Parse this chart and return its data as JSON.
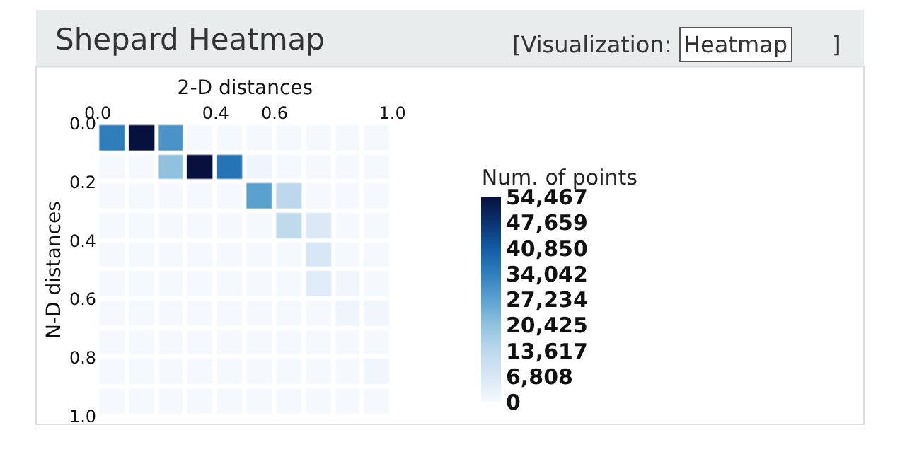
{
  "chart_data": {
    "type": "heatmap",
    "title": "Shepard Heatmap",
    "xlabel": "2-D distances",
    "ylabel": "N-D distances",
    "clabel": "Num. of points",
    "annotations": [
      "[Visualization:",
      "Heatmap",
      "]"
    ],
    "xlim": [
      0,
      1
    ],
    "ylim": [
      1,
      0
    ],
    "xticks": [
      {
        "value": 0,
        "label": "0.0"
      },
      0.4,
      0.6,
      {
        "value": 1,
        "label": "1.0"
      }
    ],
    "yticks": [
      {
        "value": 0,
        "label": "0.0"
      },
      0.2,
      0.4,
      0.6,
      0.8,
      {
        "value": 1,
        "label": "1.0"
      }
    ],
    "clim": [
      0,
      54467
    ],
    "cticks": [
      0,
      {
        "value": 6808,
        "label": "6,808"
      },
      {
        "value": 13617,
        "label": "13,617"
      },
      {
        "value": 20425,
        "label": "20,425"
      },
      {
        "value": 27234,
        "label": "27,234"
      },
      {
        "value": 34042,
        "label": "34,042"
      },
      {
        "value": 40850,
        "label": "40,850"
      },
      {
        "value": 47659,
        "label": "47,659"
      },
      {
        "value": 54467,
        "label": "54,467"
      }
    ],
    "colors": [
      "#f5f9fe",
      "#d8e7f5",
      "#bdd8ec",
      "#90c2df",
      "#5ba1d0",
      "#2f7ebc",
      "#115ca5",
      "#0a3270",
      "#08103d"
    ],
    "cells": [
      [
        34042,
        54467,
        30000,
        0,
        0,
        0,
        0,
        0,
        0,
        0
      ],
      [
        0,
        0,
        20425,
        54467,
        36000,
        1500,
        0,
        0,
        0,
        0
      ],
      [
        0,
        0,
        0,
        0,
        0,
        27234,
        13617,
        0,
        0,
        0
      ],
      [
        0,
        0,
        0,
        0,
        0,
        0,
        13000,
        6000,
        0,
        0
      ],
      [
        0,
        0,
        0,
        0,
        0,
        0,
        0,
        7000,
        0,
        0
      ],
      [
        0,
        0,
        0,
        0,
        0,
        0,
        0,
        5000,
        1000,
        0
      ],
      [
        0,
        0,
        0,
        0,
        0,
        0,
        0,
        0,
        1500,
        1000
      ],
      [
        0,
        0,
        0,
        0,
        0,
        0,
        0,
        0,
        0,
        0
      ],
      [
        0,
        0,
        0,
        0,
        0,
        0,
        0,
        0,
        0,
        1000
      ],
      [
        0,
        0,
        0,
        0,
        0,
        0,
        0,
        0,
        0,
        0
      ]
    ]
  }
}
